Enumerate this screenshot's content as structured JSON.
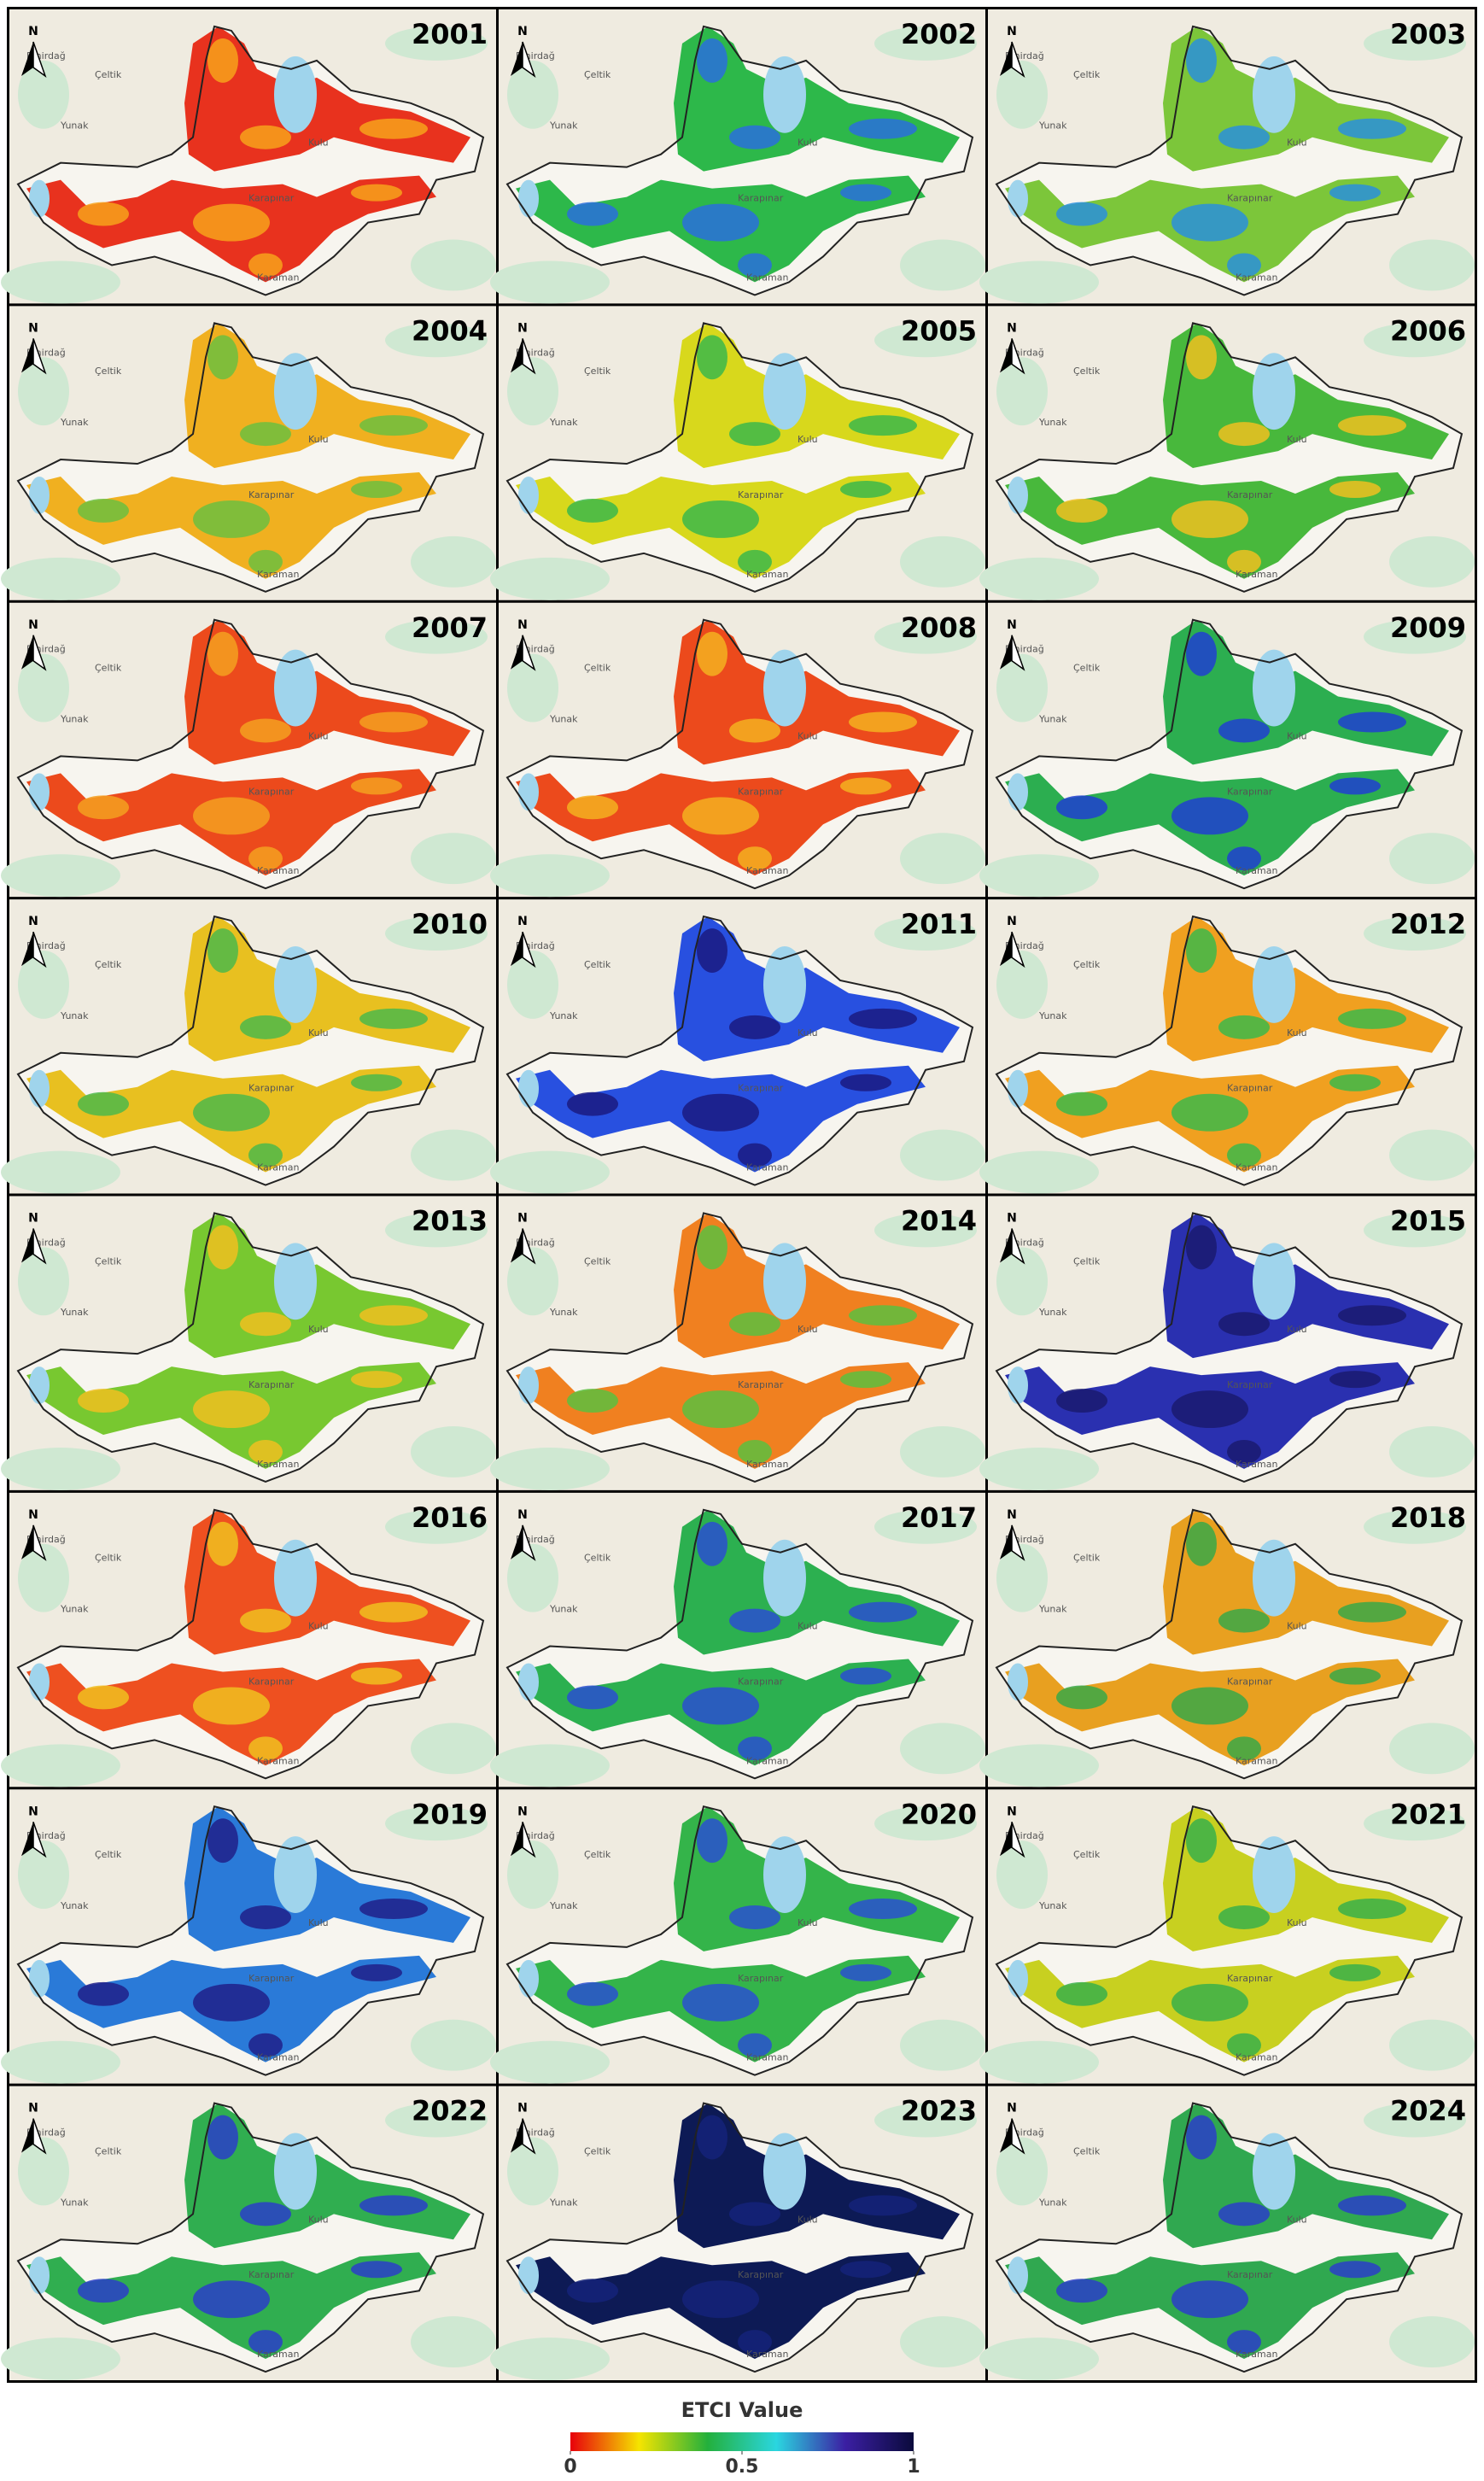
{
  "panels": [
    {
      "year": "2001",
      "color": "#e8321e",
      "accent": "#f7a21b"
    },
    {
      "year": "2002",
      "color": "#2db84a",
      "accent": "#2a6fdc"
    },
    {
      "year": "2003",
      "color": "#7cc63a",
      "accent": "#2a8fdc"
    },
    {
      "year": "2004",
      "color": "#f0b020",
      "accent": "#6cc040"
    },
    {
      "year": "2005",
      "color": "#d8d81c",
      "accent": "#3cb84a"
    },
    {
      "year": "2006",
      "color": "#48b83c",
      "accent": "#f0c020"
    },
    {
      "year": "2007",
      "color": "#ec4a1c",
      "accent": "#f5a020"
    },
    {
      "year": "2008",
      "color": "#ec4a1c",
      "accent": "#f5b020"
    },
    {
      "year": "2009",
      "color": "#2cae50",
      "accent": "#2040d0"
    },
    {
      "year": "2010",
      "color": "#e8c020",
      "accent": "#4cb84a"
    },
    {
      "year": "2011",
      "color": "#2850e0",
      "accent": "#1a1a80"
    },
    {
      "year": "2012",
      "color": "#f0a020",
      "accent": "#3cb84a"
    },
    {
      "year": "2013",
      "color": "#78c830",
      "accent": "#f0c020"
    },
    {
      "year": "2014",
      "color": "#f08020",
      "accent": "#5cc040"
    },
    {
      "year": "2015",
      "color": "#2a30b0",
      "accent": "#1a1a70"
    },
    {
      "year": "2016",
      "color": "#ee5020",
      "accent": "#f0c020"
    },
    {
      "year": "2017",
      "color": "#2cb050",
      "accent": "#2a4fd0"
    },
    {
      "year": "2018",
      "color": "#e8a020",
      "accent": "#38a848"
    },
    {
      "year": "2019",
      "color": "#2a7ad8",
      "accent": "#20208a"
    },
    {
      "year": "2020",
      "color": "#34b44a",
      "accent": "#2a50d0"
    },
    {
      "year": "2021",
      "color": "#c8d020",
      "accent": "#38b04a"
    },
    {
      "year": "2022",
      "color": "#30ae50",
      "accent": "#2a3ec8"
    },
    {
      "year": "2023",
      "color": "#0d1a55",
      "accent": "#15237a"
    },
    {
      "year": "2024",
      "color": "#30a850",
      "accent": "#2a3ec8"
    }
  ],
  "north_label": "N",
  "basemap_labels": [
    "Emirdağ",
    "Çeltik",
    "Yunak",
    "Kulu",
    "Karapınar",
    "Karaman"
  ],
  "legend": {
    "title": "ETCI Value",
    "range": [
      0,
      1
    ],
    "ticks": [
      0,
      0.5,
      1
    ],
    "colors": [
      "#e8000b",
      "#f5e400",
      "#23b03c",
      "#2ad6e0",
      "#3b1fa3",
      "#0a0a3c"
    ]
  }
}
